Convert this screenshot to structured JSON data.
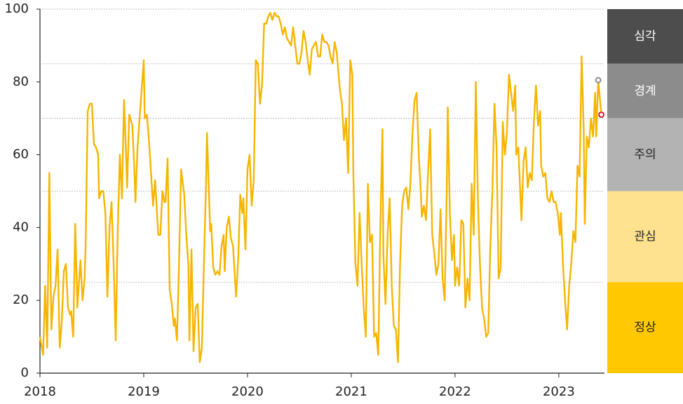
{
  "chart_data": {
    "type": "line",
    "color": "#f7b500",
    "x": [
      2018.0,
      2018.03,
      2018.05,
      2018.07,
      2018.09,
      2018.11,
      2018.13,
      2018.15,
      2018.17,
      2018.19,
      2018.21,
      2018.23,
      2018.25,
      2018.27,
      2018.29,
      2018.3,
      2018.32,
      2018.34,
      2018.36,
      2018.39,
      2018.41,
      2018.43,
      2018.44,
      2018.46,
      2018.48,
      2018.5,
      2018.52,
      2018.54,
      2018.56,
      2018.57,
      2018.59,
      2018.61,
      2018.63,
      2018.65,
      2018.67,
      2018.69,
      2018.71,
      2018.73,
      2018.75,
      2018.77,
      2018.79,
      2018.81,
      2018.83,
      2018.84,
      2018.86,
      2018.89,
      2018.91,
      2018.92,
      2018.94,
      2018.96,
      2018.98,
      2019.0,
      2019.01,
      2019.03,
      2019.05,
      2019.07,
      2019.09,
      2019.11,
      2019.14,
      2019.16,
      2019.18,
      2019.2,
      2019.21,
      2019.23,
      2019.25,
      2019.27,
      2019.29,
      2019.3,
      2019.32,
      2019.34,
      2019.36,
      2019.39,
      2019.41,
      2019.43,
      2019.44,
      2019.46,
      2019.48,
      2019.5,
      2019.52,
      2019.54,
      2019.56,
      2019.58,
      2019.6,
      2019.61,
      2019.64,
      2019.65,
      2019.67,
      2019.69,
      2019.71,
      2019.73,
      2019.75,
      2019.77,
      2019.78,
      2019.8,
      2019.82,
      2019.84,
      2019.86,
      2019.89,
      2019.91,
      2019.93,
      2019.95,
      2019.96,
      2019.98,
      2020.0,
      2020.02,
      2020.04,
      2020.06,
      2020.08,
      2020.1,
      2020.12,
      2020.14,
      2020.16,
      2020.18,
      2020.2,
      2020.22,
      2020.24,
      2020.26,
      2020.28,
      2020.3,
      2020.32,
      2020.34,
      2020.36,
      2020.38,
      2020.4,
      2020.42,
      2020.44,
      2020.46,
      2020.48,
      2020.5,
      2020.52,
      2020.54,
      2020.56,
      2020.58,
      2020.6,
      2020.62,
      2020.64,
      2020.66,
      2020.68,
      2020.7,
      2020.72,
      2020.74,
      2020.76,
      2020.78,
      2020.8,
      2020.82,
      2020.84,
      2020.86,
      2020.89,
      2020.91,
      2020.93,
      2020.95,
      2020.97,
      2020.99,
      2021.01,
      2021.02,
      2021.04,
      2021.06,
      2021.08,
      2021.1,
      2021.12,
      2021.14,
      2021.16,
      2021.18,
      2021.2,
      2021.22,
      2021.24,
      2021.26,
      2021.28,
      2021.3,
      2021.31,
      2021.33,
      2021.35,
      2021.37,
      2021.39,
      2021.41,
      2021.43,
      2021.45,
      2021.47,
      2021.49,
      2021.51,
      2021.53,
      2021.55,
      2021.57,
      2021.59,
      2021.61,
      2021.63,
      2021.65,
      2021.67,
      2021.68,
      2021.7,
      2021.72,
      2021.74,
      2021.76,
      2021.78,
      2021.8,
      2021.82,
      2021.84,
      2021.86,
      2021.88,
      2021.9,
      2021.92,
      2021.93,
      2021.95,
      2021.97,
      2021.99,
      2022.0,
      2022.02,
      2022.04,
      2022.06,
      2022.08,
      2022.1,
      2022.12,
      2022.14,
      2022.16,
      2022.18,
      2022.2,
      2022.22,
      2022.24,
      2022.26,
      2022.28,
      2022.3,
      2022.32,
      2022.34,
      2022.36,
      2022.38,
      2022.4,
      2022.42,
      2022.44,
      2022.46,
      2022.48,
      2022.5,
      2022.52,
      2022.54,
      2022.56,
      2022.58,
      2022.59,
      2022.61,
      2022.64,
      2022.66,
      2022.68,
      2022.7,
      2022.72,
      2022.74,
      2022.76,
      2022.78,
      2022.8,
      2022.82,
      2022.83,
      2022.85,
      2022.87,
      2022.89,
      2022.91,
      2022.93,
      2022.95,
      2022.97,
      2022.99,
      2023.01,
      2023.02,
      2023.04,
      2023.06,
      2023.08,
      2023.1,
      2023.12,
      2023.14,
      2023.16,
      2023.18,
      2023.2,
      2023.22,
      2023.24,
      2023.25,
      2023.27,
      2023.29,
      2023.31,
      2023.33,
      2023.35,
      2023.36,
      2023.38,
      2023.41
    ],
    "values": [
      10,
      5,
      24,
      7,
      55,
      12,
      21,
      24,
      34,
      7,
      14,
      28,
      30,
      18,
      16,
      17,
      10,
      41,
      18,
      31,
      20,
      26,
      35,
      72,
      74,
      74,
      63,
      62,
      60,
      48,
      50,
      50,
      44,
      21,
      40,
      47,
      30,
      9,
      40,
      60,
      48,
      75,
      60,
      51,
      71,
      68,
      56,
      47,
      62,
      70,
      78,
      86,
      70,
      71,
      64,
      55,
      46,
      53,
      38,
      38,
      50,
      47,
      47,
      59,
      23,
      19,
      13,
      15,
      9,
      30,
      56,
      49,
      38,
      30,
      9,
      34,
      6,
      18,
      19,
      3,
      7,
      30,
      52,
      66,
      39,
      41,
      29,
      27,
      28,
      27,
      35,
      38,
      28,
      40,
      43,
      37,
      35,
      21,
      31,
      49,
      44,
      48,
      34,
      56,
      60,
      46,
      53,
      86,
      85,
      74,
      79,
      96,
      96,
      98,
      99,
      97,
      99,
      98,
      98,
      96,
      93,
      95,
      92,
      91,
      90,
      95,
      90,
      85,
      85,
      88,
      94,
      91,
      86,
      82,
      89,
      90,
      91,
      87,
      87,
      93,
      91,
      91,
      90,
      87,
      85,
      91,
      88,
      78,
      74,
      64,
      70,
      55,
      86,
      82,
      55,
      30,
      24,
      44,
      30,
      18,
      10,
      52,
      36,
      38,
      10,
      11,
      5,
      40,
      67,
      32,
      19,
      38,
      48,
      24,
      13,
      12,
      3,
      30,
      46,
      50,
      51,
      45,
      52,
      66,
      75,
      77,
      60,
      50,
      43,
      46,
      42,
      55,
      67,
      38,
      33,
      27,
      30,
      45,
      26,
      20,
      50,
      73,
      44,
      31,
      38,
      24,
      29,
      24,
      42,
      41,
      18,
      26,
      20,
      52,
      38,
      80,
      48,
      30,
      18,
      15,
      10,
      11,
      35,
      50,
      74,
      62,
      26,
      29,
      69,
      60,
      66,
      82,
      77,
      72,
      79,
      60,
      62,
      42,
      58,
      62,
      51,
      55,
      53,
      69,
      79,
      68,
      72,
      57,
      54,
      55,
      48,
      47,
      50,
      47,
      47,
      44,
      38,
      44,
      30,
      20,
      12,
      24,
      30,
      39,
      36,
      57,
      54,
      87,
      67,
      41,
      65,
      62,
      70,
      65,
      77,
      65,
      80.5,
      71
    ],
    "highlights": [
      {
        "x": 2023.38,
        "y": 80.5,
        "color": "#888888"
      },
      {
        "x": 2023.41,
        "y": 71,
        "color": "#e0001b"
      }
    ],
    "xlim": [
      2018,
      2023.44
    ],
    "xticks": [
      2018,
      2019,
      2020,
      2021,
      2022,
      2023
    ],
    "ylim": [
      0,
      100
    ],
    "yticks": [
      0,
      20,
      40,
      60,
      80,
      100
    ],
    "bands": [
      {
        "label": "심각",
        "from": 85,
        "to": 100,
        "color": "#4d4d4d",
        "text_color": "#ffffff"
      },
      {
        "label": "경계",
        "from": 70,
        "to": 85,
        "color": "#8c8c8c",
        "text_color": "#ffffff"
      },
      {
        "label": "주의",
        "from": 50,
        "to": 70,
        "color": "#b3b3b3",
        "text_color": "#222222"
      },
      {
        "label": "관심",
        "from": 25,
        "to": 50,
        "color": "#fee28f",
        "text_color": "#222222"
      },
      {
        "label": "정상",
        "from": 0,
        "to": 25,
        "color": "#ffc800",
        "text_color": "#222222"
      }
    ]
  }
}
